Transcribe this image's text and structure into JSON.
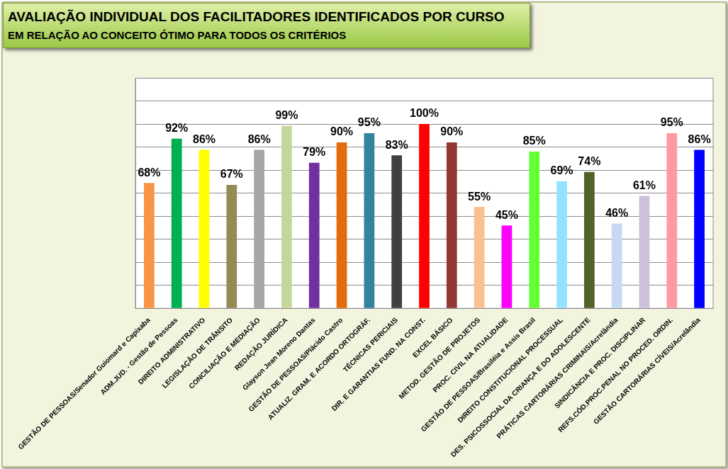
{
  "chart_data": {
    "type": "bar",
    "title": "AVALIAÇÃO INDIVIDUAL DOS FACILITADORES IDENTIFICADOS POR CURSO",
    "subtitle": "EM RELAÇÃO AO CONCEITO ÓTIMO PARA TODOS OS CRITÉRIOS",
    "categories": [
      "GESTÃO DE PESSOAS/Senador Guiomard e Capixaba",
      "ADM.JUD. - Gestão de Pessoas",
      "DIREITO ADMINISTRATIVO",
      "LEGISLAÇÃO DE TRÂNSITO",
      "CONCILIAÇÃO E MEDIAÇÃO",
      "REDAÇÃO JURÍDICA",
      "Glayson Jean Moreno Dantas",
      "GESTÃO DE PESSOAS/Plácido Castro",
      "ATUALIZ. GRAM. E ACORDO ORTOGRÁF.",
      "TÉCNICAS PERICIAIS",
      "DIR. E GARANTIAS FUND. NA CONST.",
      "EXCEL BÁSICO",
      "METOD. GESTÃO DE PROJETOS",
      "PROC. CIVIL NA ATUALIDADE",
      "GESTÃO DE PESSOAS/Brasiléia e Assis Brasil",
      "DIREITO CONSTITUCIONAL PROCESSUAL",
      "DES. PSICOSSOCIAL DA CRIANÇA E DO ADOLESCENTE",
      "PRÁTICAS CARTORÁRIAS CRIMINAIS/Acrelândia",
      "SINDICÂNCIA E PROC. DISCIPLINAR",
      "REFS.CÓD.PROC.PENAL NO PROCED. ORDIN.",
      "GESTÃO CARTORÁRIAS CÍVEIS/Acrelândia"
    ],
    "values": [
      68,
      92,
      86,
      67,
      86,
      99,
      79,
      90,
      95,
      83,
      100,
      90,
      55,
      45,
      85,
      69,
      74,
      46,
      61,
      95,
      86
    ],
    "value_labels": [
      "68%",
      "92%",
      "86%",
      "67%",
      "86%",
      "99%",
      "79%",
      "90%",
      "95%",
      "83%",
      "100%",
      "90%",
      "55%",
      "45%",
      "85%",
      "69%",
      "74%",
      "46%",
      "61%",
      "95%",
      "86%"
    ],
    "colors": [
      "#f79646",
      "#00b050",
      "#ffff00",
      "#948a54",
      "#a6a6a6",
      "#c4d79b",
      "#7030a0",
      "#e26b0a",
      "#31859c",
      "#404040",
      "#ff0000",
      "#953735",
      "#fac090",
      "#ff00ff",
      "#66ff33",
      "#93e3ff",
      "#4f6228",
      "#c6d9f1",
      "#ccc0da",
      "#ff99a8",
      "#0000ff"
    ],
    "ylim": [
      0,
      125
    ],
    "yticks": [
      0,
      12.5,
      25,
      37.5,
      50,
      62.5,
      75,
      87.5,
      100,
      112.5,
      125
    ],
    "grid": true,
    "data_labels": true,
    "tick_labels": "x"
  }
}
